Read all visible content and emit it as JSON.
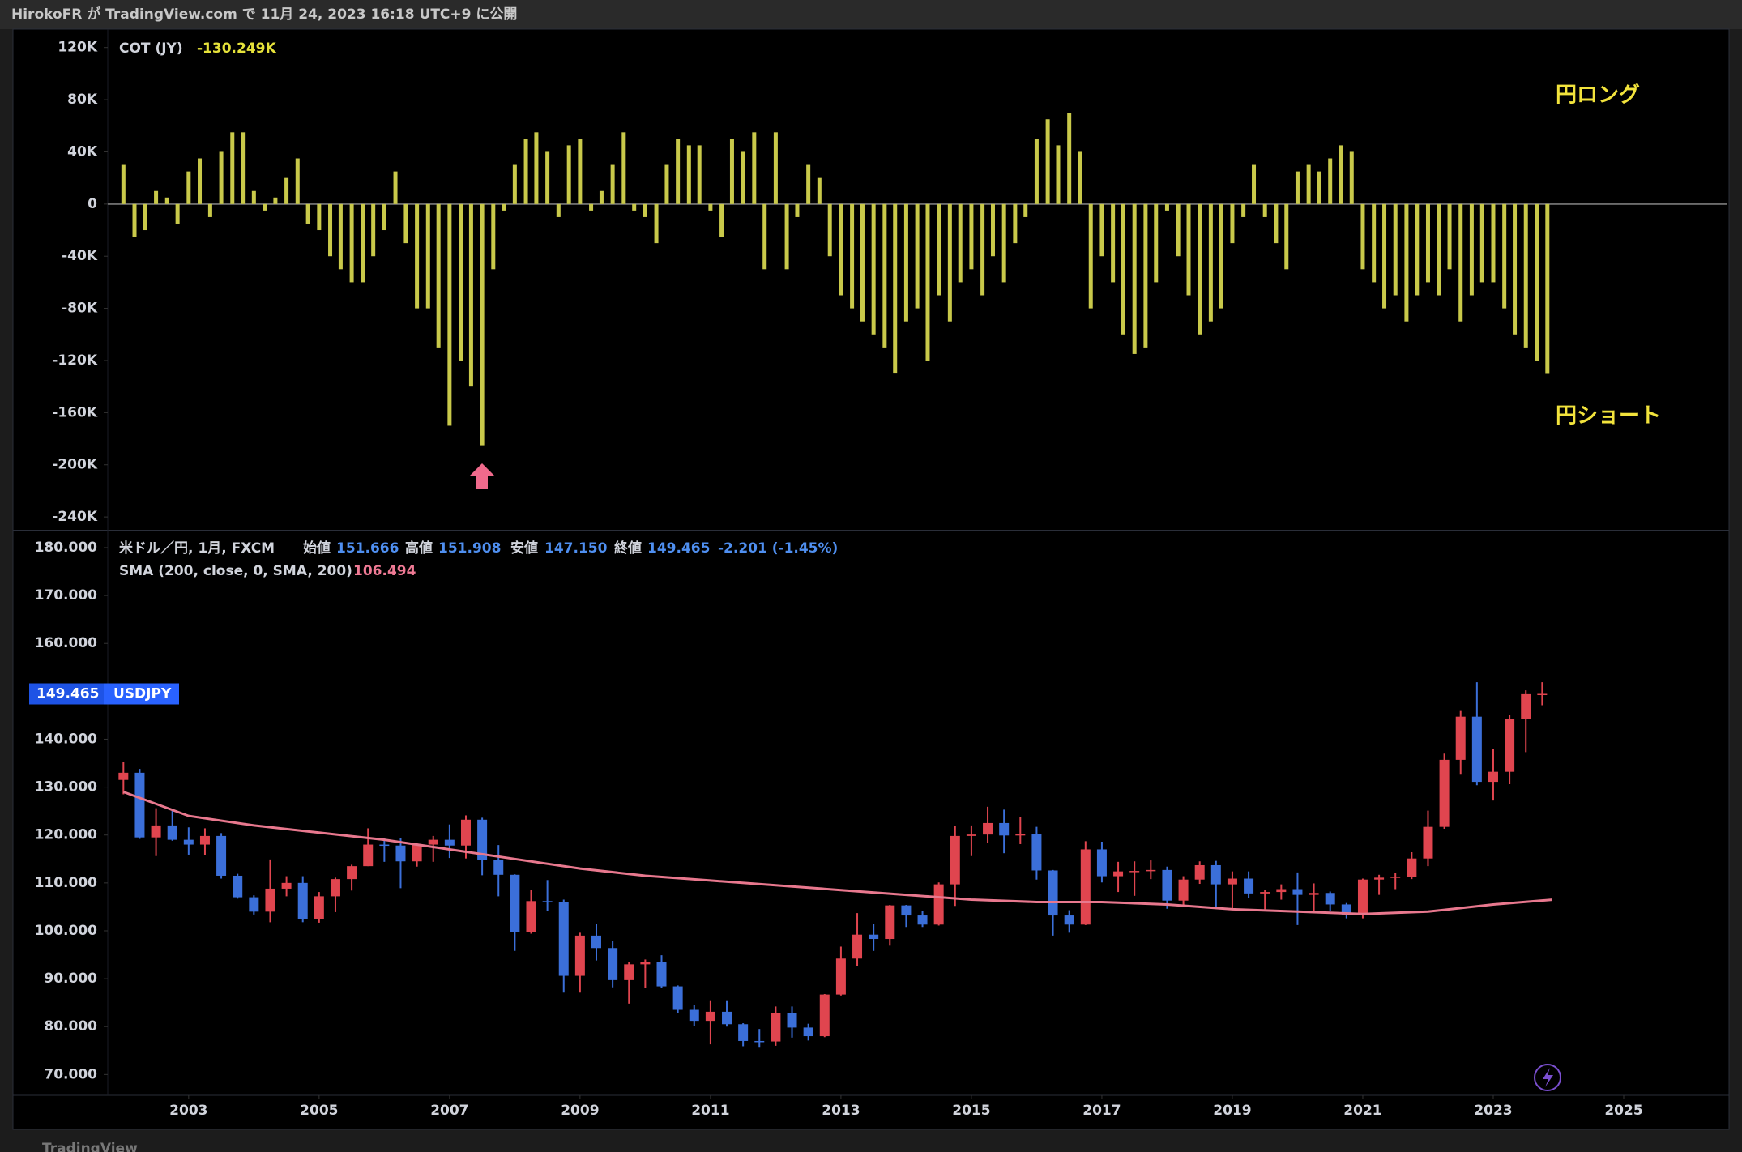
{
  "header": {
    "text": "HirokoFR が TradingView.com で 11月 24, 2023 16:18 UTC+9 に公開"
  },
  "footer": {
    "text": "TradingView"
  },
  "chart_data": [
    {
      "type": "bar",
      "title": "COT (JY)",
      "legend_value": "-130.249K",
      "color": "#c9c94a",
      "zero_line": true,
      "grid": false,
      "annotations": [
        "円ロング",
        "円ショート"
      ],
      "xlim": [
        2001.76,
        2026.59
      ],
      "ylim": [
        -248000,
        131000
      ],
      "yticks": [
        {
          "value": 120000,
          "label": "120K"
        },
        {
          "value": 80000,
          "label": "80K"
        },
        {
          "value": 40000,
          "label": "40K"
        },
        0,
        {
          "value": -40000,
          "label": "-40K"
        },
        {
          "value": -80000,
          "label": "-80K"
        },
        {
          "value": -120000,
          "label": "-120K"
        },
        {
          "value": -160000,
          "label": "-160K"
        },
        {
          "value": -200000,
          "label": "-200K"
        },
        {
          "value": -240000,
          "label": "-240K"
        }
      ],
      "x": [
        2002,
        2002.17,
        2002.33,
        2002.5,
        2002.67,
        2002.83,
        2003,
        2003.17,
        2003.33,
        2003.5,
        2003.67,
        2003.83,
        2004,
        2004.17,
        2004.33,
        2004.5,
        2004.67,
        2004.83,
        2005,
        2005.17,
        2005.33,
        2005.5,
        2005.67,
        2005.83,
        2006,
        2006.17,
        2006.33,
        2006.5,
        2006.67,
        2006.83,
        2007,
        2007.17,
        2007.33,
        2007.5,
        2007.67,
        2007.83,
        2008,
        2008.17,
        2008.33,
        2008.5,
        2008.67,
        2008.83,
        2009,
        2009.17,
        2009.33,
        2009.5,
        2009.67,
        2009.83,
        2010,
        2010.17,
        2010.33,
        2010.5,
        2010.67,
        2010.83,
        2011,
        2011.17,
        2011.33,
        2011.5,
        2011.67,
        2011.83,
        2012,
        2012.17,
        2012.33,
        2012.5,
        2012.67,
        2012.83,
        2013,
        2013.17,
        2013.33,
        2013.5,
        2013.67,
        2013.83,
        2014,
        2014.17,
        2014.33,
        2014.5,
        2014.67,
        2014.83,
        2015,
        2015.17,
        2015.33,
        2015.5,
        2015.67,
        2015.83,
        2016,
        2016.17,
        2016.33,
        2016.5,
        2016.67,
        2016.83,
        2017,
        2017.17,
        2017.33,
        2017.5,
        2017.67,
        2017.83,
        2018,
        2018.17,
        2018.33,
        2018.5,
        2018.67,
        2018.83,
        2019,
        2019.17,
        2019.33,
        2019.5,
        2019.67,
        2019.83,
        2020,
        2020.17,
        2020.33,
        2020.5,
        2020.67,
        2020.83,
        2021,
        2021.17,
        2021.33,
        2021.5,
        2021.67,
        2021.83,
        2022,
        2022.17,
        2022.33,
        2022.5,
        2022.67,
        2022.83,
        2023,
        2023.17,
        2023.33,
        2023.5,
        2023.67,
        2023.83
      ],
      "values": [
        30000,
        -25000,
        -20000,
        10000,
        5000,
        -15000,
        25000,
        35000,
        -10000,
        40000,
        55000,
        55000,
        10000,
        -5000,
        5000,
        20000,
        35000,
        -15000,
        -20000,
        -40000,
        -50000,
        -60000,
        -60000,
        -40000,
        -20000,
        25000,
        -30000,
        -80000,
        -80000,
        -110000,
        -170000,
        -120000,
        -140000,
        -185000,
        -50000,
        -5000,
        30000,
        50000,
        55000,
        40000,
        -10000,
        45000,
        50000,
        -5000,
        10000,
        30000,
        55000,
        -5000,
        -10000,
        -30000,
        30000,
        50000,
        45000,
        45000,
        -5000,
        -25000,
        50000,
        40000,
        55000,
        -50000,
        55000,
        -50000,
        -10000,
        30000,
        20000,
        -40000,
        -70000,
        -80000,
        -90000,
        -100000,
        -110000,
        -130000,
        -90000,
        -80000,
        -120000,
        -70000,
        -90000,
        -60000,
        -50000,
        -70000,
        -40000,
        -60000,
        -30000,
        -10000,
        50000,
        65000,
        45000,
        70000,
        40000,
        -80000,
        -40000,
        -60000,
        -100000,
        -115000,
        -110000,
        -60000,
        -5000,
        -40000,
        -70000,
        -100000,
        -90000,
        -80000,
        -30000,
        -10000,
        30000,
        -10000,
        -30000,
        -50000,
        25000,
        30000,
        25000,
        35000,
        45000,
        40000,
        -50000,
        -60000,
        -80000,
        -70000,
        -90000,
        -70000,
        -60000,
        -70000,
        -50000,
        -90000,
        -70000,
        -60000,
        -60000,
        -80000,
        -100000,
        -110000,
        -120000,
        -130249
      ]
    },
    {
      "type": "candlestick",
      "title": "米ドル／円, 1月, FXCM",
      "ohlc_labels": [
        {
          "label": "始値",
          "value": "151.666"
        },
        {
          "label": "高値",
          "value": "151.908"
        },
        {
          "label": "安値",
          "value": "147.150"
        },
        {
          "label": "終値",
          "value": "149.465"
        }
      ],
      "change": "-2.201 (-1.45%)",
      "up_color": "#e0454f",
      "down_color": "#3b6fd9",
      "grid": false,
      "last_price": {
        "value": 149.465,
        "label": "149.465",
        "symbol": "USDJPY"
      },
      "xlim": [
        2001.76,
        2026.59
      ],
      "ylim": [
        66,
        182.7
      ],
      "yticks": [
        {
          "value": 180,
          "label": "180.000"
        },
        {
          "value": 170,
          "label": "170.000"
        },
        {
          "value": 160,
          "label": "160.000"
        },
        {
          "value": 150,
          "label": "150.000"
        },
        {
          "value": 140,
          "label": "140.000"
        },
        {
          "value": 130,
          "label": "130.000"
        },
        {
          "value": 120,
          "label": "120.000"
        },
        {
          "value": 110,
          "label": "110.000"
        },
        {
          "value": 100,
          "label": "100.000"
        },
        {
          "value": 90,
          "label": "90.000"
        },
        {
          "value": 80,
          "label": "80.000"
        },
        {
          "value": 70,
          "label": "70.000"
        }
      ],
      "xticks": [
        2003,
        2005,
        2007,
        2009,
        2011,
        2013,
        2015,
        2017,
        2019,
        2021,
        2023,
        2025
      ],
      "x": [
        2002,
        2002.25,
        2002.5,
        2002.75,
        2003,
        2003.25,
        2003.5,
        2003.75,
        2004,
        2004.25,
        2004.5,
        2004.75,
        2005,
        2005.25,
        2005.5,
        2005.75,
        2006,
        2006.25,
        2006.5,
        2006.75,
        2007,
        2007.25,
        2007.5,
        2007.75,
        2008,
        2008.25,
        2008.5,
        2008.75,
        2009,
        2009.25,
        2009.5,
        2009.75,
        2010,
        2010.25,
        2010.5,
        2010.75,
        2011,
        2011.25,
        2011.5,
        2011.75,
        2012,
        2012.25,
        2012.5,
        2012.75,
        2013,
        2013.25,
        2013.5,
        2013.75,
        2014,
        2014.25,
        2014.5,
        2014.75,
        2015,
        2015.25,
        2015.5,
        2015.75,
        2016,
        2016.25,
        2016.5,
        2016.75,
        2017,
        2017.25,
        2017.5,
        2017.75,
        2018,
        2018.25,
        2018.5,
        2018.75,
        2019,
        2019.25,
        2019.5,
        2019.75,
        2020,
        2020.25,
        2020.5,
        2020.75,
        2021,
        2021.25,
        2021.5,
        2021.75,
        2022,
        2022.25,
        2022.5,
        2022.75,
        2023,
        2023.25,
        2023.5,
        2023.75
      ],
      "open": [
        131.5,
        133,
        119.5,
        122,
        119,
        118,
        119.8,
        111.5,
        107,
        104,
        108.8,
        110,
        102.5,
        107.2,
        110.8,
        113.5,
        118,
        117.8,
        114.5,
        118,
        119,
        117.8,
        123.2,
        114.8,
        111.7,
        99.7,
        106.2,
        106,
        90.6,
        99,
        96.4,
        89.7,
        93,
        93.5,
        88.4,
        83.5,
        81.2,
        83.1,
        80.5,
        77,
        76.9,
        82.9,
        79.8,
        78,
        86.7,
        94.2,
        99.2,
        98.3,
        105.3,
        103.2,
        101.3,
        109.7,
        119.8,
        120.1,
        122.5,
        119.9,
        120.2,
        112.6,
        103.2,
        101.3,
        117,
        111.4,
        112.4,
        112.5,
        112.7,
        106.3,
        110.7,
        113.7,
        109.7,
        110.9,
        107.8,
        108.1,
        108.7,
        107.5,
        107.9,
        105.5,
        103.3,
        110.7,
        111.1,
        111.3,
        115.1,
        121.7,
        135.7,
        144.7,
        131.1,
        133.2,
        144.3,
        149.4
      ],
      "high": [
        135.2,
        133.8,
        125.6,
        125.1,
        121.6,
        121.4,
        120.4,
        111.9,
        107.4,
        114.9,
        111.4,
        111.4,
        108.1,
        111.1,
        113.8,
        121.4,
        119.4,
        119.4,
        118.2,
        119.8,
        122.2,
        124.1,
        123.6,
        117.9,
        111.8,
        108.6,
        110.6,
        106.5,
        99.6,
        101.4,
        97.8,
        93.4,
        94,
        94.9,
        88.6,
        84.5,
        85.5,
        85.5,
        80.7,
        79.5,
        84.2,
        84.2,
        80.6,
        86.8,
        96.7,
        103.7,
        101.5,
        105.4,
        105.4,
        104.1,
        110.1,
        121.9,
        122,
        125.9,
        125.3,
        123.8,
        121.7,
        112.7,
        104.3,
        118.7,
        118.6,
        114.4,
        114.5,
        114.7,
        113.4,
        111.4,
        114.5,
        114.6,
        112.4,
        112.4,
        108.5,
        109.7,
        112.2,
        109.9,
        108.2,
        105.8,
        110.9,
        111.7,
        112.1,
        116.4,
        125.1,
        137,
        145.9,
        151.9,
        137.9,
        145.1,
        150.2,
        151.9
      ],
      "low": [
        128.5,
        119.2,
        115.6,
        118.8,
        115.9,
        115.8,
        110.9,
        106.7,
        103.4,
        101.8,
        107.2,
        101.8,
        101.7,
        103.9,
        108.4,
        113.5,
        114.4,
        108.9,
        113.4,
        114.4,
        115.2,
        115.1,
        111.6,
        107.2,
        95.8,
        99.4,
        104.2,
        87.1,
        87.1,
        93.8,
        88.2,
        84.8,
        88.1,
        88.1,
        82.9,
        80.2,
        76.3,
        80,
        75.9,
        75.6,
        76,
        77.7,
        77.1,
        77.8,
        86.5,
        92.6,
        95.8,
        96.9,
        100.8,
        100.8,
        101.1,
        105.2,
        115.6,
        118.3,
        116.2,
        118.1,
        110.7,
        99,
        99.6,
        101.2,
        110.1,
        108.1,
        107.3,
        110.8,
        104.6,
        105,
        109.8,
        104.7,
        104.5,
        106.8,
        104.5,
        106.5,
        101.2,
        104,
        104.2,
        102.6,
        102.6,
        107.5,
        108.7,
        110.8,
        113.5,
        121.3,
        132.6,
        130.4,
        127.2,
        130.6,
        137.3,
        147.1
      ],
      "close": [
        133,
        119.5,
        122,
        119,
        118,
        119.8,
        111.5,
        107,
        104,
        108.8,
        110,
        102.5,
        107.2,
        110.8,
        113.5,
        118,
        117.8,
        114.5,
        118,
        119,
        117.8,
        123.2,
        114.8,
        111.7,
        99.7,
        106.2,
        106,
        90.6,
        99,
        96.4,
        89.7,
        93,
        93.5,
        88.4,
        83.5,
        81.2,
        83.1,
        80.5,
        77,
        76.9,
        82.9,
        79.8,
        78,
        86.7,
        94.2,
        99.2,
        98.3,
        105.3,
        103.2,
        101.3,
        109.7,
        119.8,
        120.1,
        122.5,
        119.9,
        120.2,
        112.6,
        103.2,
        101.3,
        117,
        111.4,
        112.4,
        112.5,
        112.7,
        106.3,
        110.7,
        113.7,
        109.7,
        110.9,
        107.8,
        108.1,
        108.7,
        107.5,
        107.9,
        105.5,
        103.3,
        110.7,
        111.1,
        111.3,
        115.1,
        121.7,
        135.7,
        144.7,
        131.1,
        133.2,
        144.3,
        149.4,
        149.465
      ],
      "overlay": {
        "name": "SMA (200, close, 0, SMA, 200)",
        "legend_value": "106.494",
        "color": "#e8788e",
        "x": [
          2002,
          2003,
          2004,
          2005,
          2006,
          2007,
          2008,
          2009,
          2010,
          2011,
          2012,
          2013,
          2014,
          2015,
          2016,
          2017,
          2018,
          2019,
          2020,
          2021,
          2022,
          2023,
          2023.9
        ],
        "values": [
          129,
          124,
          122,
          120.5,
          119,
          117,
          115,
          113,
          111.5,
          110.5,
          109.5,
          108.5,
          107.5,
          106.5,
          106,
          106,
          105.5,
          104.5,
          104,
          103.5,
          104,
          105.5,
          106.494
        ]
      }
    }
  ]
}
